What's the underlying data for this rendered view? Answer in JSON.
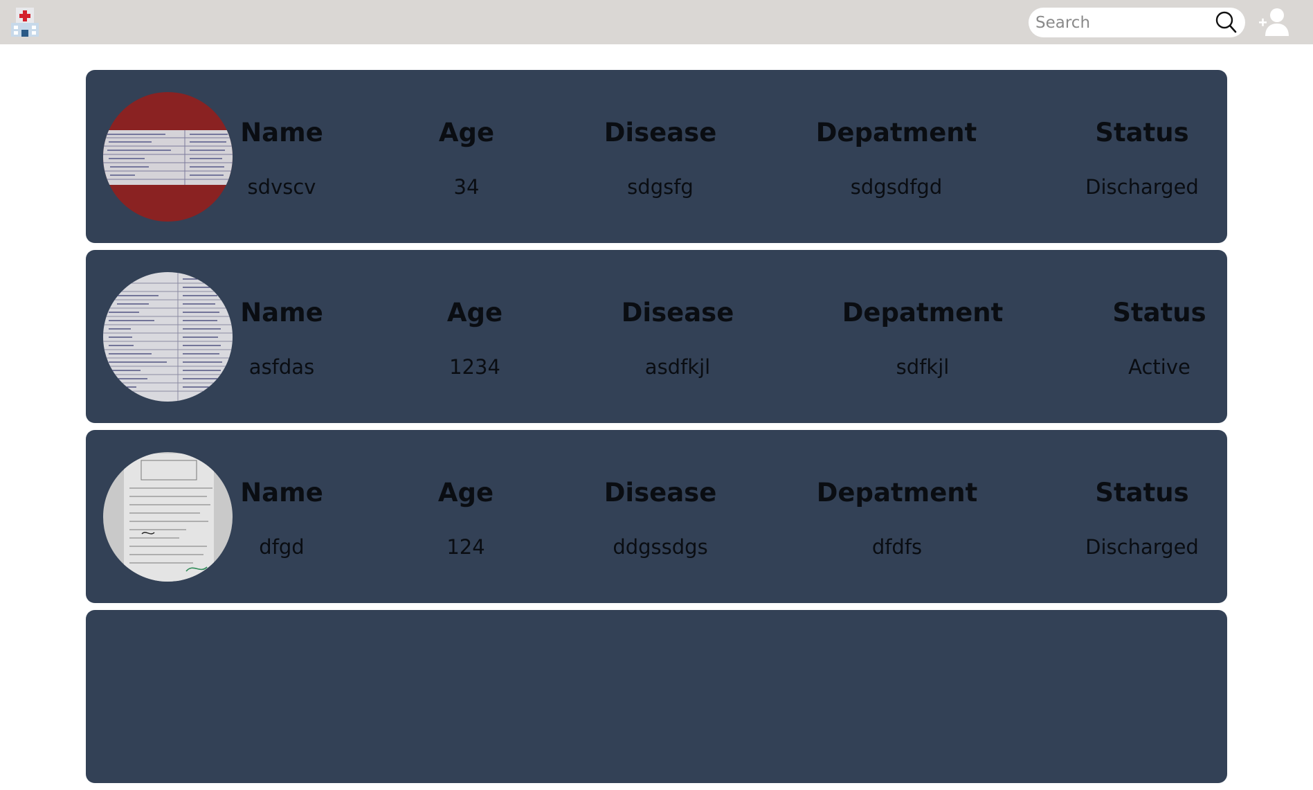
{
  "header": {
    "search_placeholder": "Search",
    "logo_icon": "hospital-logo-icon",
    "search_icon": "search-icon",
    "profile_icon": "add-user-icon"
  },
  "columns": {
    "name": "Name",
    "age": "Age",
    "disease": "Disease",
    "department": "Depatment",
    "status": "Status"
  },
  "patients": [
    {
      "name": "sdvscv",
      "age": "34",
      "disease": "sdgsfg",
      "department": "sdgsdfgd",
      "status": "Discharged"
    },
    {
      "name": "asfdas",
      "age": "1234",
      "disease": "asdfkjl",
      "department": "sdfkjl",
      "status": "Active"
    },
    {
      "name": "dfgd",
      "age": "124",
      "disease": "ddgssdgs",
      "department": "dfdfs",
      "status": "Discharged"
    }
  ],
  "colors": {
    "topbar": "#dad7d4",
    "card": "#334156",
    "text": "#0a0d12"
  }
}
